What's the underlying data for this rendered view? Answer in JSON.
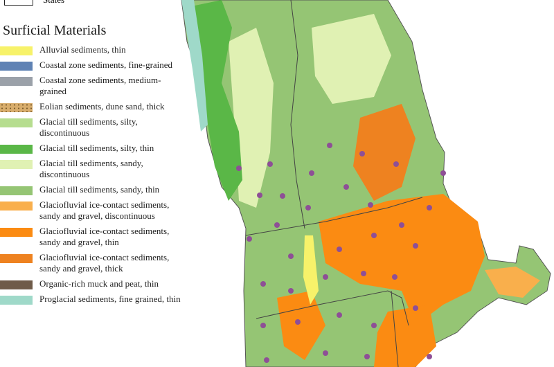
{
  "legend": {
    "states_label": "States",
    "title": "Surficial Materials",
    "items": [
      {
        "label": "Alluvial sediments, thin",
        "color": "#f7f26a"
      },
      {
        "label": "Coastal zone sediments, fine-grained",
        "color": "#5f82b4"
      },
      {
        "label": "Coastal zone sediments, medium-grained",
        "color": "#9ba1a9"
      },
      {
        "label": "Eolian sediments, dune sand, thick",
        "color": "#d8ad6c"
      },
      {
        "label": "Glacial till sediments, silty, discontinuous",
        "color": "#b6dd8f"
      },
      {
        "label": "Glacial till sediments, silty, thin",
        "color": "#5ab747"
      },
      {
        "label": "Glacial till sediments, sandy, discontinuous",
        "color": "#e0f1b3"
      },
      {
        "label": "Glacial till sediments, sandy, thin",
        "color": "#95c574"
      },
      {
        "label": "Glaciofluvial ice-contact sediments, sandy and gravel, discontinuous",
        "color": "#f9af4c"
      },
      {
        "label": "Glaciofluvial ice-contact sediments, sandy and gravel, thin",
        "color": "#fb8b12"
      },
      {
        "label": "Glaciofluvial ice-contact sediments, sandy and gravel, thick",
        "color": "#ee8220"
      },
      {
        "label": "Organic-rich muck and peat, thin",
        "color": "#6f5b49"
      },
      {
        "label": "Proglacial sediments, fine grained, thin",
        "color": "#9fd9c9"
      }
    ]
  }
}
